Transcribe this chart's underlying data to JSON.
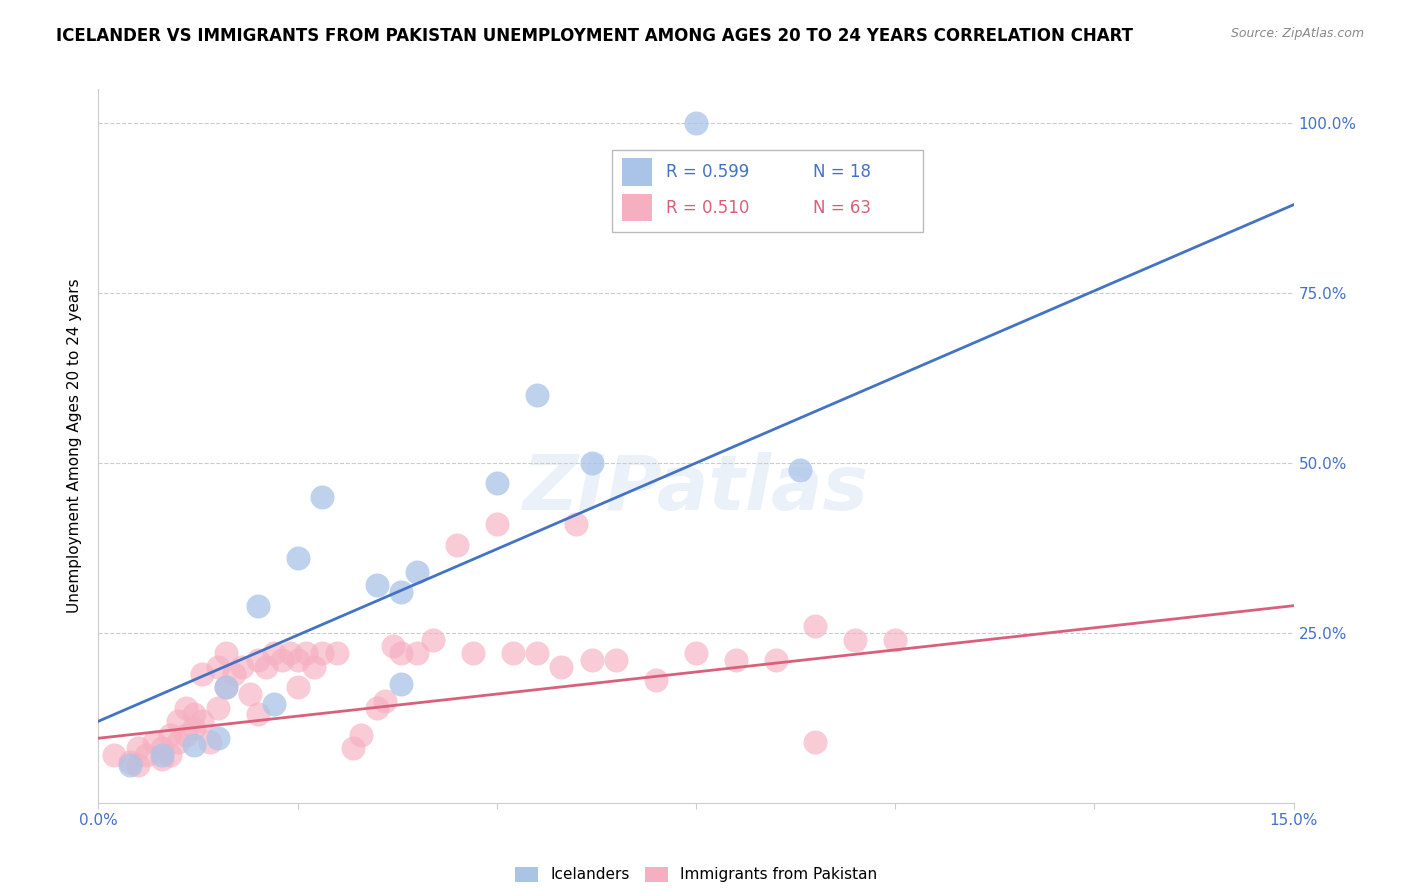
{
  "title": "ICELANDER VS IMMIGRANTS FROM PAKISTAN UNEMPLOYMENT AMONG AGES 20 TO 24 YEARS CORRELATION CHART",
  "source": "Source: ZipAtlas.com",
  "ylabel": "Unemployment Among Ages 20 to 24 years",
  "xlim": [
    0.0,
    0.15
  ],
  "ylim": [
    0.0,
    1.05
  ],
  "blue_color": "#aac4e8",
  "pink_color": "#f5afc0",
  "blue_line_color": "#4472c4",
  "pink_line_color": "#d9607a",
  "blue_r": "R = 0.599",
  "blue_n": "N = 18",
  "pink_r": "R = 0.510",
  "pink_n": "N = 63",
  "watermark": "ZIPatlas",
  "icelanders_label": "Icelanders",
  "pakistan_label": "Immigrants from Pakistan",
  "ice_x": [
    0.004,
    0.008,
    0.012,
    0.015,
    0.016,
    0.02,
    0.022,
    0.025,
    0.028,
    0.035,
    0.038,
    0.04,
    0.05,
    0.055,
    0.062,
    0.075,
    0.088,
    0.038
  ],
  "ice_y": [
    0.055,
    0.07,
    0.085,
    0.095,
    0.17,
    0.29,
    0.145,
    0.36,
    0.45,
    0.32,
    0.31,
    0.34,
    0.47,
    0.6,
    0.5,
    1.0,
    0.49,
    0.175
  ],
  "pak_x": [
    0.002,
    0.004,
    0.005,
    0.005,
    0.006,
    0.007,
    0.008,
    0.008,
    0.009,
    0.009,
    0.01,
    0.01,
    0.011,
    0.011,
    0.012,
    0.012,
    0.013,
    0.013,
    0.014,
    0.015,
    0.015,
    0.016,
    0.016,
    0.017,
    0.018,
    0.019,
    0.02,
    0.02,
    0.021,
    0.022,
    0.023,
    0.024,
    0.025,
    0.025,
    0.026,
    0.027,
    0.028,
    0.03,
    0.032,
    0.033,
    0.035,
    0.036,
    0.037,
    0.038,
    0.04,
    0.042,
    0.045,
    0.047,
    0.05,
    0.052,
    0.055,
    0.058,
    0.06,
    0.062,
    0.065,
    0.07,
    0.075,
    0.08,
    0.085,
    0.09,
    0.095,
    0.1,
    0.09
  ],
  "pak_y": [
    0.07,
    0.06,
    0.08,
    0.055,
    0.07,
    0.09,
    0.08,
    0.065,
    0.1,
    0.07,
    0.09,
    0.12,
    0.1,
    0.14,
    0.11,
    0.13,
    0.12,
    0.19,
    0.09,
    0.14,
    0.2,
    0.17,
    0.22,
    0.19,
    0.2,
    0.16,
    0.13,
    0.21,
    0.2,
    0.22,
    0.21,
    0.22,
    0.17,
    0.21,
    0.22,
    0.2,
    0.22,
    0.22,
    0.08,
    0.1,
    0.14,
    0.15,
    0.23,
    0.22,
    0.22,
    0.24,
    0.38,
    0.22,
    0.41,
    0.22,
    0.22,
    0.2,
    0.41,
    0.21,
    0.21,
    0.18,
    0.22,
    0.21,
    0.21,
    0.09,
    0.24,
    0.24,
    0.26
  ],
  "blue_line_y0": 0.12,
  "blue_line_y1": 0.88,
  "pink_line_y0": 0.095,
  "pink_line_y1": 0.29
}
